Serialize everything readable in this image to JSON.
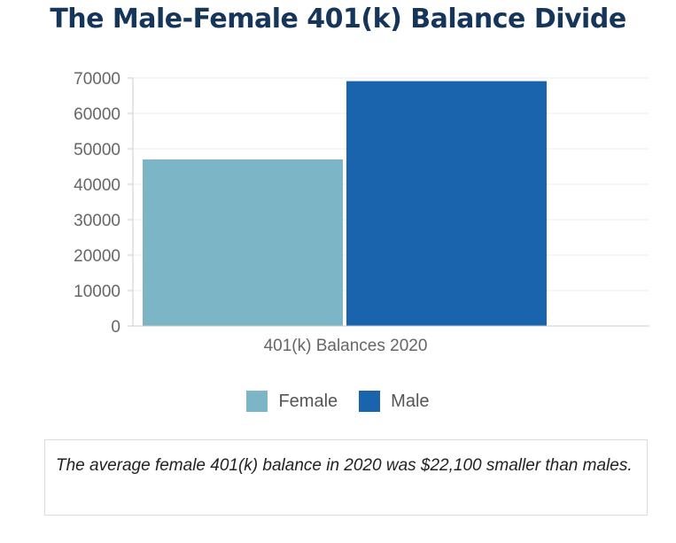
{
  "title": "The Male-Female 401(k) Balance Divide",
  "chart_data": {
    "type": "bar",
    "categories": [
      "401(k) Balances 2020"
    ],
    "series": [
      {
        "name": "Female",
        "values": [
          47000
        ],
        "color": "#7cb5c5"
      },
      {
        "name": "Male",
        "values": [
          69100
        ],
        "color": "#1a64ae"
      }
    ],
    "ylim": [
      0,
      70000
    ],
    "yticks": [
      "0",
      "10000",
      "20000",
      "30000",
      "40000",
      "50000",
      "60000",
      "70000"
    ],
    "grid": true,
    "legend_position": "bottom-center"
  },
  "legend": [
    {
      "label": "Female",
      "color": "#7cb5c5"
    },
    {
      "label": "Male",
      "color": "#1a64ae"
    }
  ],
  "note": "The average female 401(k) balance in 2020 was $22,100 smaller than males."
}
